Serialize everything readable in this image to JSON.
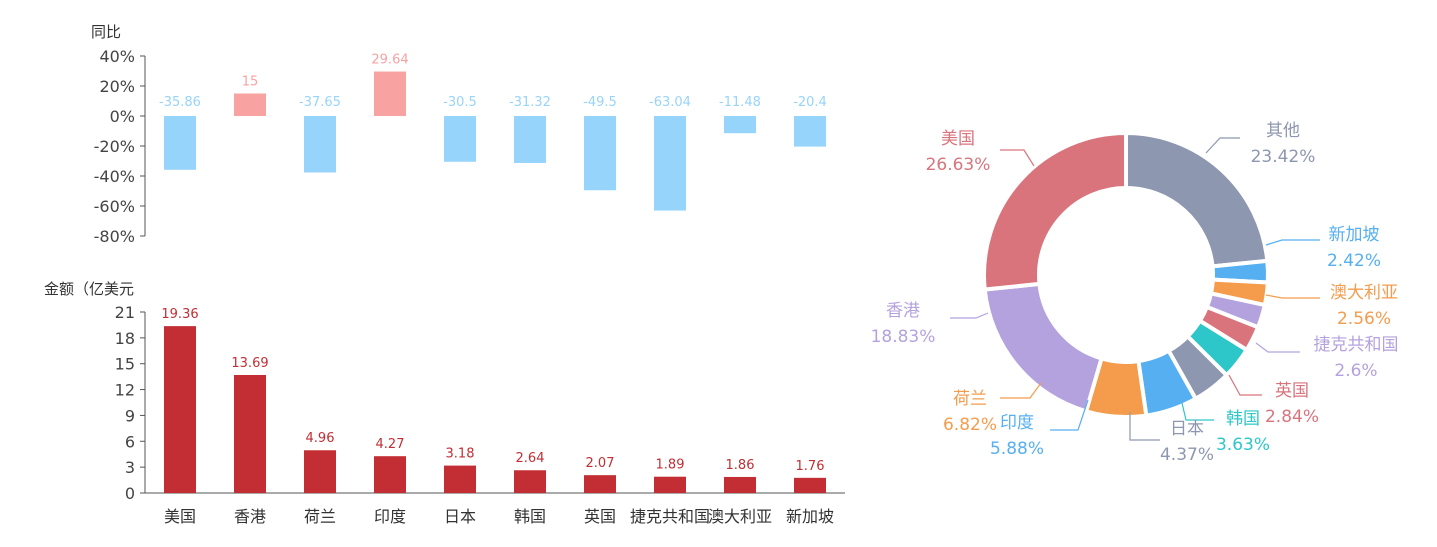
{
  "chart_data": [
    {
      "type": "bar",
      "ylabel": "同比",
      "categories": [
        "美国",
        "香港",
        "荷兰",
        "印度",
        "日本",
        "韩国",
        "英国",
        "捷克共和国",
        "澳大利亚",
        "新加坡"
      ],
      "values": [
        -35.86,
        15,
        -37.65,
        29.64,
        -30.5,
        -31.32,
        -49.5,
        -63.04,
        -11.48,
        -20.4
      ],
      "value_labels": [
        "-35.86",
        "15",
        "-37.65",
        "29.64",
        "-30.5",
        "-31.32",
        "-49.5",
        "-63.04",
        "-11.48",
        "-20.4"
      ],
      "ylim": [
        -80,
        40
      ],
      "yticks": [
        "40%",
        "20%",
        "0%",
        "-20%",
        "-40%",
        "-60%",
        "-80%"
      ],
      "colors": {
        "positive": "#f9a2a2",
        "negative": "#97d4fc"
      }
    },
    {
      "type": "bar",
      "ylabel": "金额（亿美元",
      "categories": [
        "美国",
        "香港",
        "荷兰",
        "印度",
        "日本",
        "韩国",
        "英国",
        "捷克共和国",
        "澳大利亚",
        "新加坡"
      ],
      "values": [
        19.36,
        13.69,
        4.96,
        4.27,
        3.18,
        2.64,
        2.07,
        1.89,
        1.86,
        1.76
      ],
      "value_labels": [
        "19.36",
        "13.69",
        "4.96",
        "4.27",
        "3.18",
        "2.64",
        "2.07",
        "1.89",
        "1.86",
        "1.76"
      ],
      "ylim": [
        0,
        21
      ],
      "yticks": [
        "21",
        "18",
        "15",
        "12",
        "9",
        "6",
        "3",
        "0"
      ],
      "color": "#c22e33"
    },
    {
      "type": "pie",
      "style": "donut",
      "slices": [
        {
          "name": "其他",
          "value": 23.42,
          "label": "23.42%",
          "color": "#8e97b0"
        },
        {
          "name": "新加坡",
          "value": 2.42,
          "label": "2.42%",
          "color": "#56aff0"
        },
        {
          "name": "澳大利亚",
          "value": 2.56,
          "label": "2.56%",
          "color": "#f49c4c"
        },
        {
          "name": "捷克共和国",
          "value": 2.6,
          "label": "2.6%",
          "color": "#b4a2de"
        },
        {
          "name": "英国",
          "value": 2.84,
          "label": "2.84%",
          "color": "#d9747d"
        },
        {
          "name": "韩国",
          "value": 3.63,
          "label": "3.63%",
          "color": "#2ec7c9"
        },
        {
          "name": "日本",
          "value": 4.37,
          "label": "4.37%",
          "color": "#8e97b0"
        },
        {
          "name": "印度",
          "value": 5.88,
          "label": "5.88%",
          "color": "#56aff0"
        },
        {
          "name": "荷兰",
          "value": 6.82,
          "label": "6.82%",
          "color": "#f49c4c"
        },
        {
          "name": "香港",
          "value": 18.83,
          "label": "18.83%",
          "color": "#b4a2de"
        },
        {
          "name": "美国",
          "value": 26.63,
          "label": "26.63%",
          "color": "#d9747d"
        }
      ]
    }
  ]
}
